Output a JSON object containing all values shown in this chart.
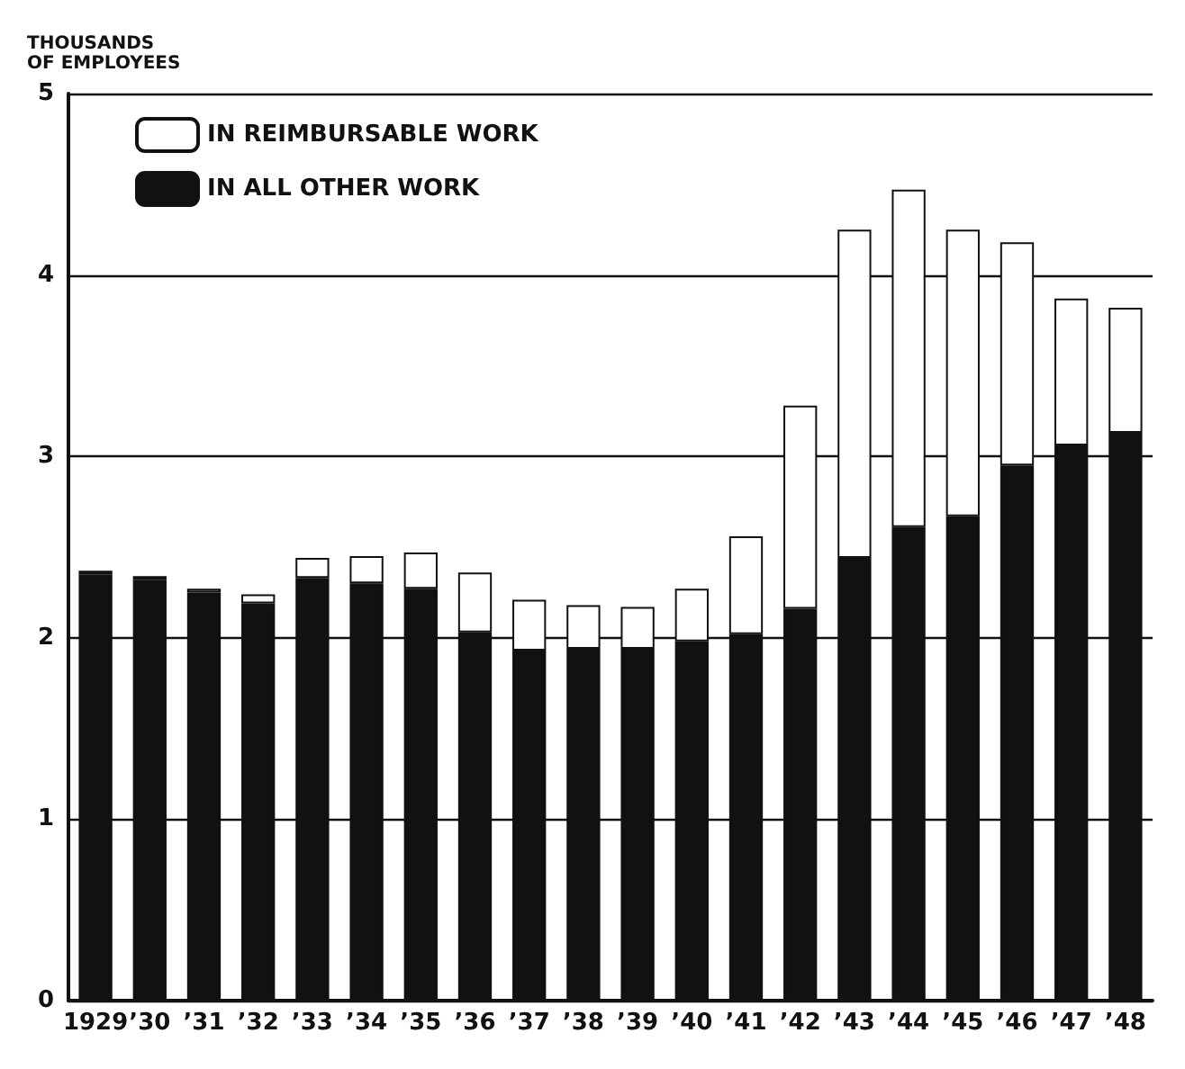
{
  "chart_data": {
    "type": "bar",
    "ylabel": "THOUSANDS\nOF EMPLOYEES",
    "categories": [
      "1929",
      "’30",
      "’31",
      "’32",
      "’33",
      "’34",
      "’35",
      "’36",
      "’37",
      "’38",
      "’39",
      "’40",
      "’41",
      "’42",
      "’43",
      "’44",
      "’45",
      "’46",
      "’47",
      "’48"
    ],
    "stacked": true,
    "series": [
      {
        "name": "IN ALL OTHER WORK",
        "color": "#111111",
        "values": [
          2.35,
          2.32,
          2.25,
          2.19,
          2.33,
          2.3,
          2.27,
          2.03,
          1.93,
          1.94,
          1.94,
          1.98,
          2.02,
          2.16,
          2.44,
          2.61,
          2.67,
          2.95,
          3.06,
          3.13
        ]
      },
      {
        "name": "IN REIMBURSABLE WORK",
        "color": "#ffffff",
        "values": [
          0.02,
          0.02,
          0.02,
          0.05,
          0.11,
          0.15,
          0.2,
          0.33,
          0.28,
          0.24,
          0.23,
          0.29,
          0.54,
          1.12,
          1.81,
          1.86,
          1.58,
          1.23,
          0.81,
          0.69
        ]
      }
    ],
    "ylim": [
      0,
      5
    ],
    "yticks": [
      0,
      1,
      2,
      3,
      4,
      5
    ],
    "grid": "y",
    "legend": "top left"
  }
}
